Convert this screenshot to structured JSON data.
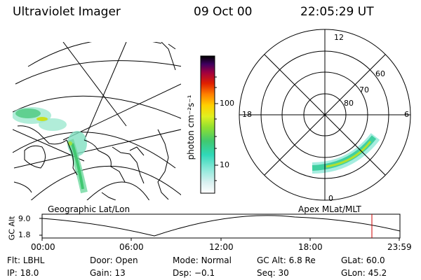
{
  "header": {
    "instrument": "Ultraviolet Imager",
    "date": "09 Oct 00",
    "time": "22:05:29 UT"
  },
  "colorbar": {
    "label": "photon cm⁻²s⁻¹",
    "ticks": [
      {
        "label": "100",
        "value": 100
      },
      {
        "label": "10",
        "value": 10
      }
    ]
  },
  "polar_plot": {
    "mlt_labels": {
      "top": "12",
      "left": "18",
      "right": "6",
      "bottom": "0"
    },
    "lat_labels": [
      "60",
      "70",
      "80"
    ]
  },
  "geo_map": {
    "caption": "Geographic Lat/Lon"
  },
  "apex_caption": "Apex MLat/MLT",
  "altitude_panel": {
    "ylabel": "GC Alt",
    "yticks": [
      "9.0",
      "1.8"
    ],
    "xticks": [
      "00:00",
      "06:00",
      "12:00",
      "18:00",
      "23:59"
    ],
    "marker_color": "#cc0000"
  },
  "info_rows": [
    [
      {
        "key": "Flt:",
        "value": "LBHL"
      },
      {
        "key": "Door:",
        "value": "Open"
      },
      {
        "key": "Mode:",
        "value": "Normal"
      },
      {
        "key": "GC Alt:",
        "value": "6.8 Re"
      },
      {
        "key": "GLat:",
        "value": "60.0"
      }
    ],
    [
      {
        "key": "IP:",
        "value": "18.0"
      },
      {
        "key": "Gain:",
        "value": "13"
      },
      {
        "key": "Dsp:",
        "value": "−0.1"
      },
      {
        "key": "Seq:",
        "value": "30"
      },
      {
        "key": "GLon:",
        "value": "45.2"
      }
    ]
  ]
}
